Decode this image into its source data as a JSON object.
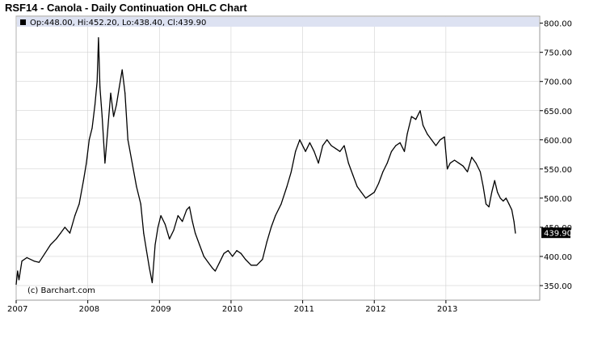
{
  "title": "RSF14 - Canola - Daily Continuation OHLC Chart",
  "legend": {
    "text": "Op:448.00, Hi:452.20, Lo:438.40, Cl:439.90",
    "open": 448.0,
    "high": 452.2,
    "low": 438.4,
    "close": 439.9
  },
  "copyright": "(c) Barchart.com",
  "last_price_label": "439.90",
  "colors": {
    "price": "#000000",
    "legend_band": "#dde2f2",
    "grid": "#c8c8c8",
    "last_label_bg": "#000000"
  },
  "chart_data": {
    "type": "line",
    "subtype": "ohlc",
    "title": "RSF14 - Canola - Daily Continuation OHLC Chart",
    "xlabel": "",
    "ylabel": "",
    "x_ticks": [
      "2007",
      "2008",
      "2009",
      "2010",
      "2011",
      "2012",
      "2013"
    ],
    "y_ticks": [
      "350.00",
      "400.00",
      "450.00",
      "500.00",
      "550.00",
      "600.00",
      "650.00",
      "700.00",
      "750.00",
      "800.00"
    ],
    "xlim": [
      2007.0,
      2014.31
    ],
    "ylim": [
      325,
      812
    ],
    "y_axis_side": "right",
    "grid": true,
    "series": [
      {
        "values": [
          [
            2007.0,
            352
          ],
          [
            2007.02,
            375
          ],
          [
            2007.04,
            360
          ],
          [
            2007.08,
            392
          ],
          [
            2007.15,
            398
          ],
          [
            2007.25,
            392
          ],
          [
            2007.32,
            390
          ],
          [
            2007.4,
            405
          ],
          [
            2007.48,
            420
          ],
          [
            2007.56,
            430
          ],
          [
            2007.62,
            440
          ],
          [
            2007.68,
            450
          ],
          [
            2007.75,
            440
          ],
          [
            2007.82,
            470
          ],
          [
            2007.88,
            490
          ],
          [
            2007.94,
            530
          ],
          [
            2007.98,
            560
          ],
          [
            2008.02,
            600
          ],
          [
            2008.06,
            620
          ],
          [
            2008.1,
            660
          ],
          [
            2008.13,
            700
          ],
          [
            2008.15,
            775
          ],
          [
            2008.17,
            690
          ],
          [
            2008.2,
            640
          ],
          [
            2008.24,
            560
          ],
          [
            2008.28,
            620
          ],
          [
            2008.32,
            680
          ],
          [
            2008.36,
            640
          ],
          [
            2008.4,
            660
          ],
          [
            2008.44,
            690
          ],
          [
            2008.48,
            720
          ],
          [
            2008.5,
            700
          ],
          [
            2008.52,
            680
          ],
          [
            2008.56,
            600
          ],
          [
            2008.62,
            560
          ],
          [
            2008.68,
            520
          ],
          [
            2008.74,
            490
          ],
          [
            2008.78,
            440
          ],
          [
            2008.82,
            410
          ],
          [
            2008.86,
            380
          ],
          [
            2008.9,
            355
          ],
          [
            2008.94,
            420
          ],
          [
            2008.98,
            450
          ],
          [
            2009.02,
            470
          ],
          [
            2009.08,
            455
          ],
          [
            2009.14,
            430
          ],
          [
            2009.2,
            445
          ],
          [
            2009.26,
            470
          ],
          [
            2009.32,
            460
          ],
          [
            2009.38,
            480
          ],
          [
            2009.42,
            485
          ],
          [
            2009.46,
            460
          ],
          [
            2009.5,
            440
          ],
          [
            2009.56,
            420
          ],
          [
            2009.62,
            400
          ],
          [
            2009.68,
            390
          ],
          [
            2009.74,
            380
          ],
          [
            2009.78,
            375
          ],
          [
            2009.84,
            390
          ],
          [
            2009.9,
            405
          ],
          [
            2009.96,
            410
          ],
          [
            2010.02,
            400
          ],
          [
            2010.08,
            410
          ],
          [
            2010.14,
            405
          ],
          [
            2010.2,
            395
          ],
          [
            2010.28,
            385
          ],
          [
            2010.36,
            385
          ],
          [
            2010.44,
            395
          ],
          [
            2010.5,
            425
          ],
          [
            2010.56,
            450
          ],
          [
            2010.62,
            470
          ],
          [
            2010.7,
            490
          ],
          [
            2010.78,
            520
          ],
          [
            2010.84,
            545
          ],
          [
            2010.9,
            580
          ],
          [
            2010.96,
            600
          ],
          [
            2011.04,
            580
          ],
          [
            2011.1,
            595
          ],
          [
            2011.16,
            580
          ],
          [
            2011.22,
            560
          ],
          [
            2011.28,
            590
          ],
          [
            2011.34,
            600
          ],
          [
            2011.4,
            590
          ],
          [
            2011.46,
            585
          ],
          [
            2011.52,
            580
          ],
          [
            2011.58,
            590
          ],
          [
            2011.64,
            560
          ],
          [
            2011.7,
            540
          ],
          [
            2011.76,
            520
          ],
          [
            2011.82,
            510
          ],
          [
            2011.88,
            500
          ],
          [
            2011.94,
            505
          ],
          [
            2012.0,
            510
          ],
          [
            2012.06,
            525
          ],
          [
            2012.12,
            545
          ],
          [
            2012.18,
            560
          ],
          [
            2012.24,
            580
          ],
          [
            2012.3,
            590
          ],
          [
            2012.36,
            595
          ],
          [
            2012.42,
            580
          ],
          [
            2012.46,
            610
          ],
          [
            2012.52,
            640
          ],
          [
            2012.58,
            635
          ],
          [
            2012.64,
            650
          ],
          [
            2012.68,
            625
          ],
          [
            2012.74,
            610
          ],
          [
            2012.8,
            600
          ],
          [
            2012.86,
            590
          ],
          [
            2012.92,
            600
          ],
          [
            2012.98,
            605
          ],
          [
            2013.02,
            550
          ],
          [
            2013.06,
            560
          ],
          [
            2013.12,
            565
          ],
          [
            2013.18,
            560
          ],
          [
            2013.24,
            555
          ],
          [
            2013.3,
            545
          ],
          [
            2013.36,
            570
          ],
          [
            2013.42,
            560
          ],
          [
            2013.48,
            545
          ],
          [
            2013.52,
            520
          ],
          [
            2013.56,
            490
          ],
          [
            2013.6,
            485
          ],
          [
            2013.64,
            510
          ],
          [
            2013.68,
            530
          ],
          [
            2013.72,
            510
          ],
          [
            2013.76,
            500
          ],
          [
            2013.8,
            495
          ],
          [
            2013.84,
            500
          ],
          [
            2013.88,
            490
          ],
          [
            2013.92,
            480
          ],
          [
            2013.95,
            460
          ],
          [
            2013.97,
            440
          ]
        ]
      }
    ]
  }
}
